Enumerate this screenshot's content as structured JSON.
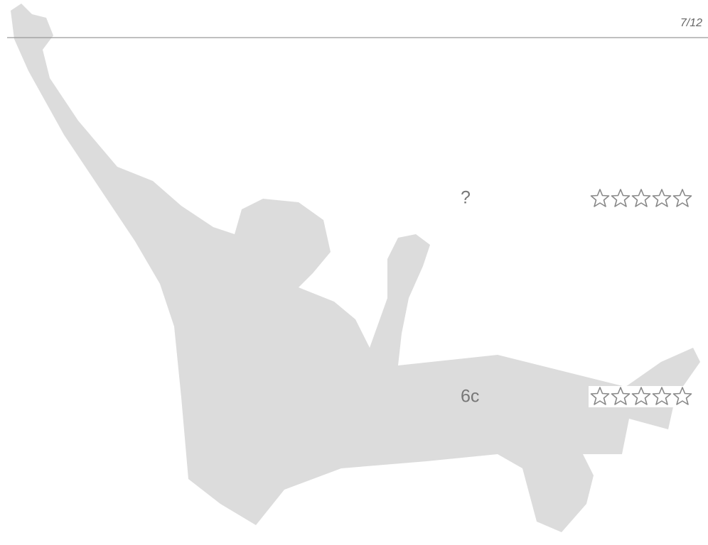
{
  "header": {
    "page_counter": "7/12"
  },
  "items": [
    {
      "label": "?"
    },
    {
      "label": "6c"
    }
  ]
}
